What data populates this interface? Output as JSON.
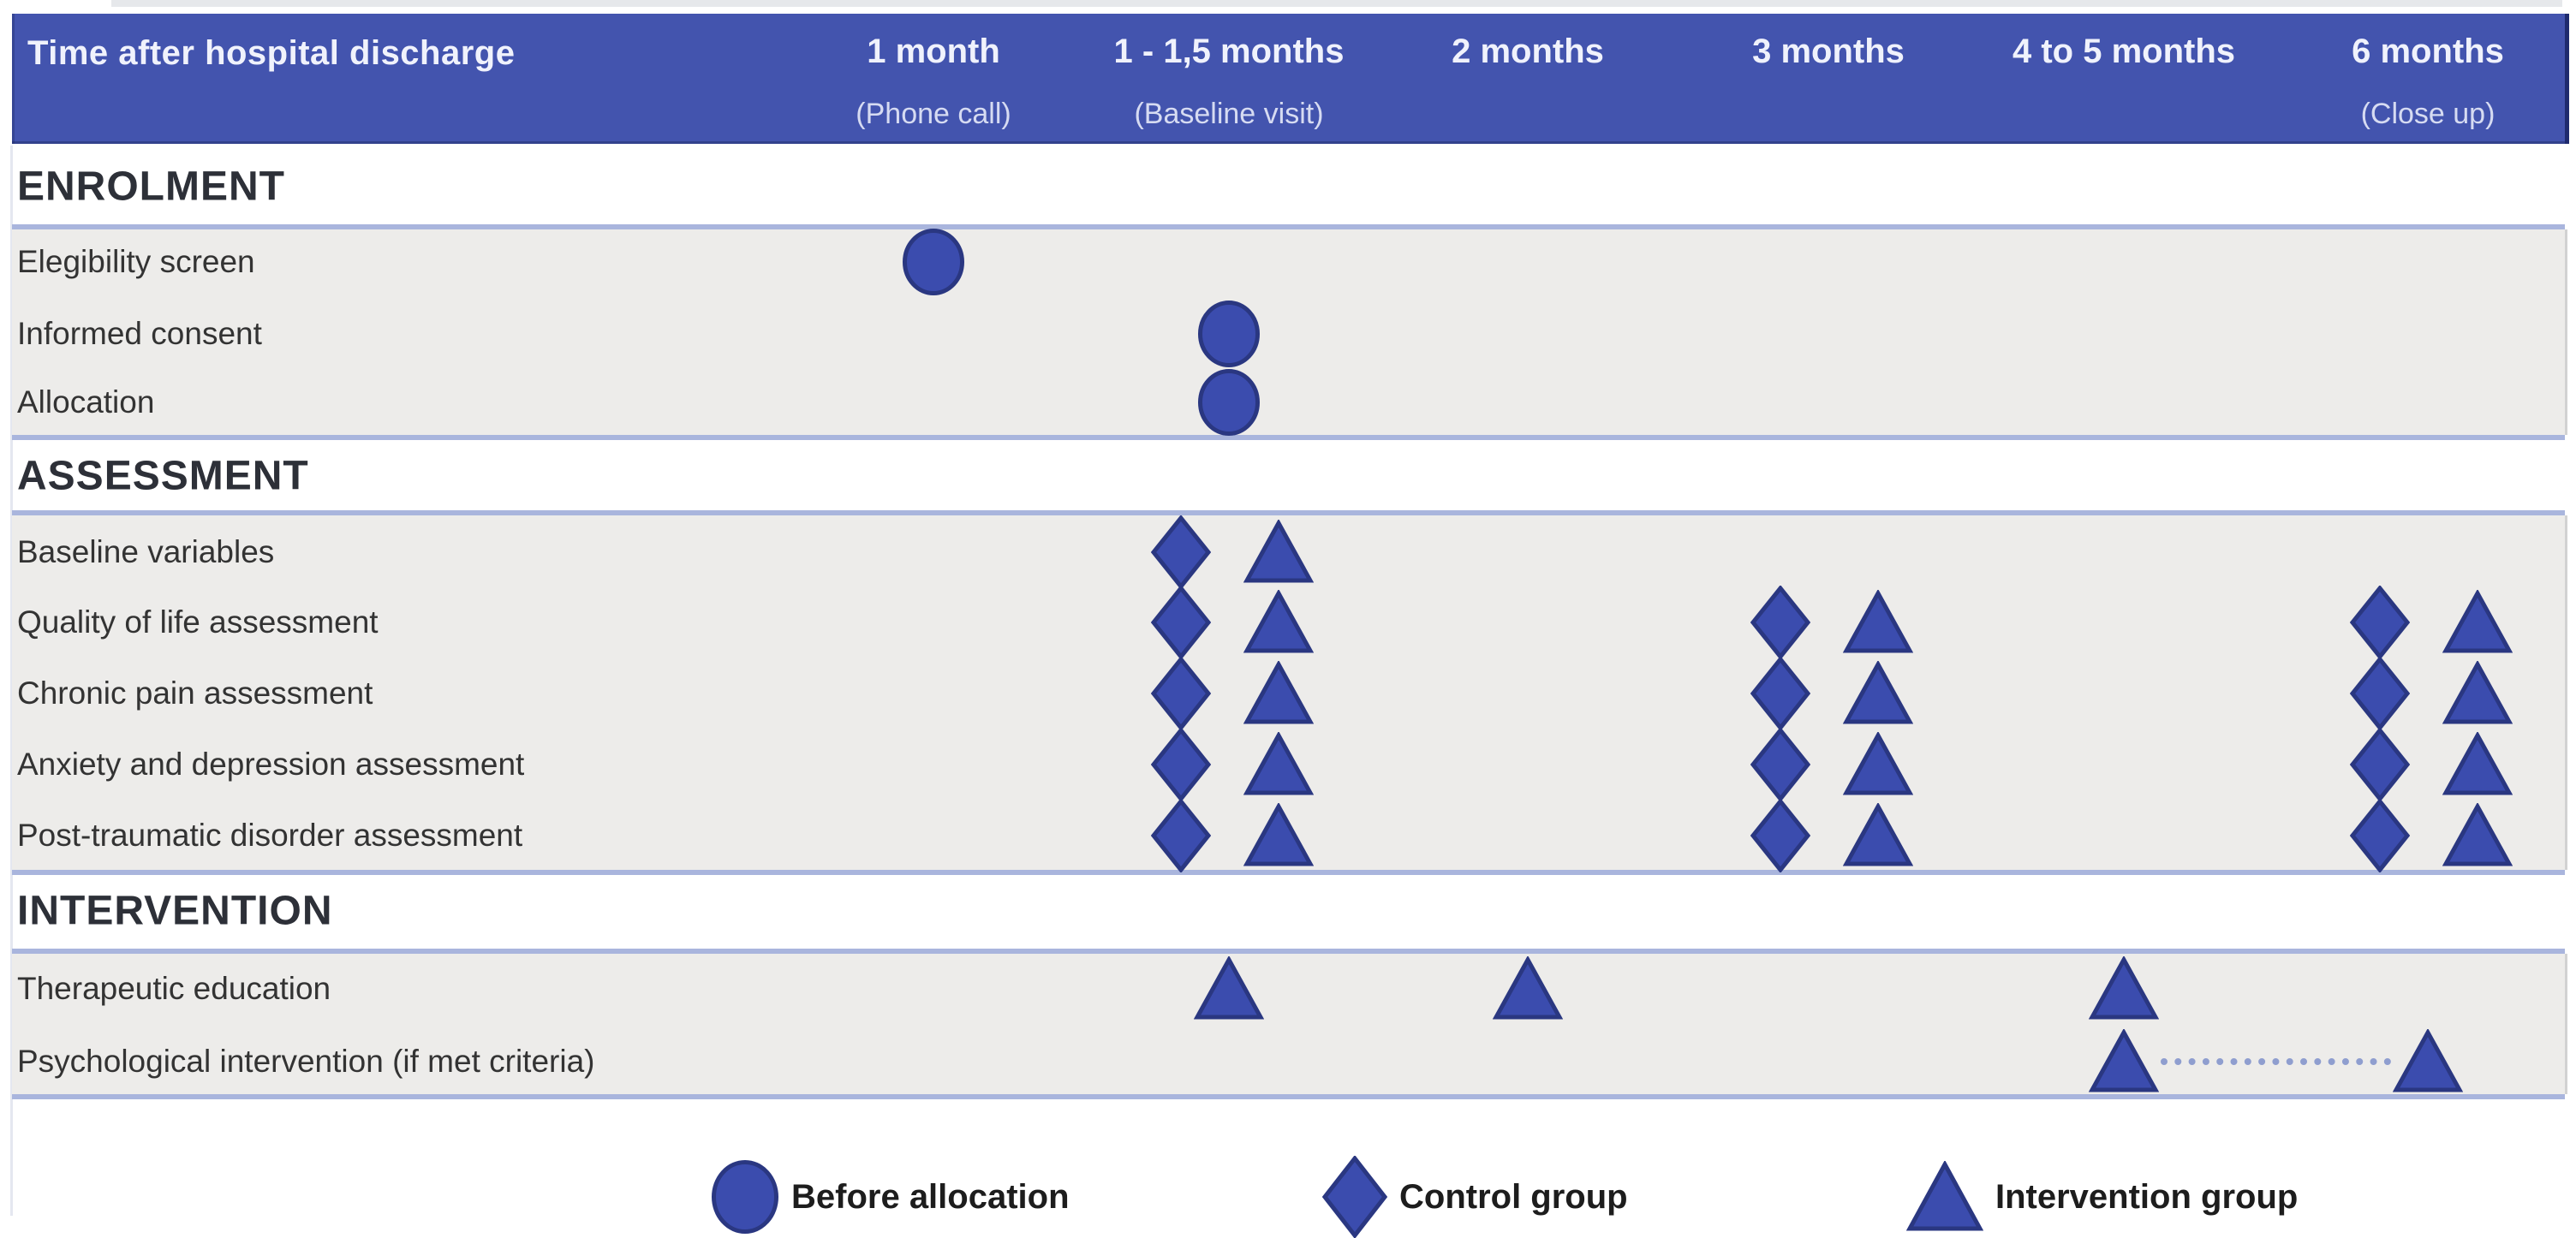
{
  "figure": {
    "header": {
      "title": "Time after hospital discharge",
      "columns": [
        {
          "id": "m1",
          "label": "1 month",
          "sublabel": "(Phone call)"
        },
        {
          "id": "m1_5",
          "label": "1 - 1,5 months",
          "sublabel": "(Baseline visit)"
        },
        {
          "id": "m2",
          "label": "2 months",
          "sublabel": ""
        },
        {
          "id": "m3",
          "label": "3 months",
          "sublabel": ""
        },
        {
          "id": "m4_5",
          "label": "4 to 5 months",
          "sublabel": ""
        },
        {
          "id": "m6",
          "label": "6 months",
          "sublabel": "(Close up)"
        }
      ]
    },
    "sections": [
      {
        "title": "ENROLMENT",
        "rows": [
          {
            "label": "Elegibility screen",
            "markers": [
              {
                "col": "m1",
                "shape": "circle"
              }
            ]
          },
          {
            "label": "Informed consent",
            "markers": [
              {
                "col": "m1_5",
                "shape": "circle"
              }
            ]
          },
          {
            "label": "Allocation",
            "markers": [
              {
                "col": "m1_5",
                "shape": "circle"
              }
            ]
          }
        ]
      },
      {
        "title": "ASSESSMENT",
        "rows": [
          {
            "label": "Baseline variables",
            "markers": [
              {
                "col": "m1_5",
                "shape": "diamond+triangle"
              }
            ]
          },
          {
            "label": "Quality of life assessment",
            "markers": [
              {
                "col": "m1_5",
                "shape": "diamond+triangle"
              },
              {
                "col": "m3",
                "shape": "diamond+triangle"
              },
              {
                "col": "m6",
                "shape": "diamond+triangle"
              }
            ]
          },
          {
            "label": "Chronic pain assessment",
            "markers": [
              {
                "col": "m1_5",
                "shape": "diamond+triangle"
              },
              {
                "col": "m3",
                "shape": "diamond+triangle"
              },
              {
                "col": "m6",
                "shape": "diamond+triangle"
              }
            ]
          },
          {
            "label": "Anxiety and depression assessment",
            "markers": [
              {
                "col": "m1_5",
                "shape": "diamond+triangle"
              },
              {
                "col": "m3",
                "shape": "diamond+triangle"
              },
              {
                "col": "m6",
                "shape": "diamond+triangle"
              }
            ]
          },
          {
            "label": "Post-traumatic disorder assessment",
            "markers": [
              {
                "col": "m1_5",
                "shape": "diamond+triangle"
              },
              {
                "col": "m3",
                "shape": "diamond+triangle"
              },
              {
                "col": "m6",
                "shape": "diamond+triangle"
              }
            ]
          }
        ]
      },
      {
        "title": "INTERVENTION",
        "rows": [
          {
            "label": "Therapeutic education",
            "markers": [
              {
                "col": "m1_5",
                "shape": "triangle"
              },
              {
                "col": "m2",
                "shape": "triangle"
              },
              {
                "col": "m4_5",
                "shape": "triangle"
              }
            ]
          },
          {
            "label": "Psychological intervention (if met criteria)",
            "markers": [
              {
                "col": "m4_5",
                "shape": "triangle"
              },
              {
                "col": "m6",
                "shape": "triangle"
              }
            ],
            "connector": {
              "from": "m4_5",
              "to": "m6",
              "style": "dotted"
            }
          }
        ]
      }
    ],
    "legend": {
      "items": [
        {
          "shape": "circle",
          "label": "Before allocation"
        },
        {
          "shape": "diamond",
          "label": "Control group"
        },
        {
          "shape": "triangle",
          "label": "Intervention group"
        }
      ]
    },
    "colors": {
      "header_bg": "#4354ae",
      "header_text": "#f0f2fc",
      "header_subtext": "#d6dbf2",
      "marker_fill": "#3b4cae",
      "marker_stroke": "#2a3781",
      "divider": "#a9b5dd",
      "band_gray": "#edecea",
      "section_title": "#2d3038",
      "row_text": "#333333",
      "legend_text": "#1d1d1d",
      "connector": "#8f9ecf"
    }
  }
}
